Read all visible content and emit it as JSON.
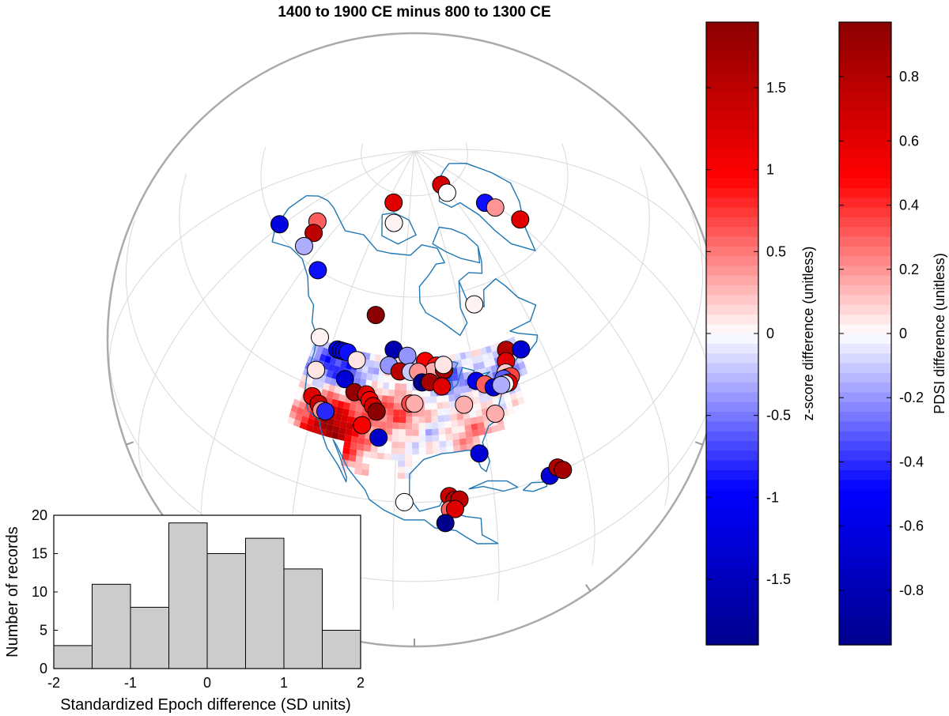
{
  "chart_data": [
    {
      "type": "map",
      "title": "1400 to 1900 CE minus 800 to 1300 CE",
      "projection": "orthographic, centered on North America",
      "background_field": "PDSI difference, gridded over contiguous US and northern Mexico",
      "markers": "circles colored by z-score difference at proxy record sites",
      "coastline_color": "#1f77b4",
      "grid": true,
      "sites": [
        {
          "lon": -161,
          "lat": 61,
          "z": -1.2
        },
        {
          "lon": -150,
          "lat": 67,
          "z": 0.6
        },
        {
          "lon": -147,
          "lat": 65,
          "z": 1.5
        },
        {
          "lon": -146,
          "lat": 62,
          "z": -0.3
        },
        {
          "lon": -135,
          "lat": 60,
          "z": -0.9
        },
        {
          "lon": -115,
          "lat": 78,
          "z": 1.2
        },
        {
          "lon": -110,
          "lat": 74,
          "z": 0.05
        },
        {
          "lon": -62,
          "lat": 81,
          "z": 1.3
        },
        {
          "lon": -62,
          "lat": 79,
          "z": 0.0
        },
        {
          "lon": -44,
          "lat": 73,
          "z": -0.9
        },
        {
          "lon": -42,
          "lat": 71,
          "z": 0.4
        },
        {
          "lon": -38,
          "lat": 66,
          "z": 1.2
        },
        {
          "lon": -109,
          "lat": 56,
          "z": 1.9
        },
        {
          "lon": -75,
          "lat": 57,
          "z": 0.05
        },
        {
          "lon": -124,
          "lat": 49,
          "z": 0.05
        },
        {
          "lon": -118,
          "lat": 48,
          "z": -1.1
        },
        {
          "lon": -117,
          "lat": 48,
          "z": -1.2
        },
        {
          "lon": -116,
          "lat": 48,
          "z": -1.0
        },
        {
          "lon": -115,
          "lat": 48,
          "z": -0.9
        },
        {
          "lon": -112,
          "lat": 47,
          "z": 0.1
        },
        {
          "lon": -102,
          "lat": 50,
          "z": -1.6
        },
        {
          "lon": -98,
          "lat": 49,
          "z": -0.4
        },
        {
          "lon": -93,
          "lat": 48,
          "z": 1.0
        },
        {
          "lon": -90,
          "lat": 47,
          "z": 0.9
        },
        {
          "lon": -91,
          "lat": 46,
          "z": 0.3
        },
        {
          "lon": -88,
          "lat": 46,
          "z": 1.7
        },
        {
          "lon": -88,
          "lat": 47,
          "z": 0.1
        },
        {
          "lon": -103,
          "lat": 47,
          "z": -0.4
        },
        {
          "lon": -100,
          "lat": 46,
          "z": 1.5
        },
        {
          "lon": -97,
          "lat": 46,
          "z": -0.2
        },
        {
          "lon": -95,
          "lat": 46,
          "z": 0.4
        },
        {
          "lon": -94,
          "lat": 44,
          "z": -1.9
        },
        {
          "lon": -92,
          "lat": 44,
          "z": 1.7
        },
        {
          "lon": -89,
          "lat": 43,
          "z": 1.2
        },
        {
          "lon": -80,
          "lat": 43,
          "z": -1.1
        },
        {
          "lon": -78,
          "lat": 42,
          "z": 0.6
        },
        {
          "lon": -76,
          "lat": 41,
          "z": -1.3
        },
        {
          "lon": -70,
          "lat": 47,
          "z": 1.6
        },
        {
          "lon": -66,
          "lat": 46,
          "z": -1.3
        },
        {
          "lon": -71,
          "lat": 45,
          "z": 1.2
        },
        {
          "lon": -72,
          "lat": 43,
          "z": 0.2
        },
        {
          "lon": -72,
          "lat": 42,
          "z": 1.3
        },
        {
          "lon": -71,
          "lat": 42,
          "z": 0.7
        },
        {
          "lon": -73,
          "lat": 42,
          "z": -0.6
        },
        {
          "lon": -72,
          "lat": 41,
          "z": 1.2
        },
        {
          "lon": -73,
          "lat": 41,
          "z": 0.0
        },
        {
          "lon": -74,
          "lat": 41,
          "z": -0.3
        },
        {
          "lon": -122,
          "lat": 43,
          "z": 0.1
        },
        {
          "lon": -114,
          "lat": 43,
          "z": -1.3
        },
        {
          "lon": -111,
          "lat": 41,
          "z": 1.8
        },
        {
          "lon": -108,
          "lat": 41,
          "z": 1.2
        },
        {
          "lon": -107,
          "lat": 40,
          "z": 1.0
        },
        {
          "lon": -106,
          "lat": 39,
          "z": 1.3
        },
        {
          "lon": -105,
          "lat": 38,
          "z": 1.9
        },
        {
          "lon": -97,
          "lat": 40,
          "z": 0.7
        },
        {
          "lon": -96,
          "lat": 40,
          "z": 0.3
        },
        {
          "lon": -84,
          "lat": 39,
          "z": 0.3
        },
        {
          "lon": -77,
          "lat": 36,
          "z": 0.3
        },
        {
          "lon": -121,
          "lat": 38,
          "z": 1.2
        },
        {
          "lon": -119,
          "lat": 37,
          "z": 1.4
        },
        {
          "lon": -118,
          "lat": 36,
          "z": 0.4
        },
        {
          "lon": -117,
          "lat": 36,
          "z": -0.8
        },
        {
          "lon": -108,
          "lat": 35,
          "z": 1.0
        },
        {
          "lon": -104,
          "lat": 33,
          "z": -1.4
        },
        {
          "lon": -82,
          "lat": 29,
          "z": -1.3
        },
        {
          "lon": -98,
          "lat": 20,
          "z": 0.0
        },
        {
          "lon": -89,
          "lat": 21,
          "z": 1.4
        },
        {
          "lon": -88,
          "lat": 20,
          "z": 1.6
        },
        {
          "lon": -87,
          "lat": 20,
          "z": 1.5
        },
        {
          "lon": -89,
          "lat": 18,
          "z": 0.6
        },
        {
          "lon": -88,
          "lat": 18,
          "z": 1.2
        },
        {
          "lon": -90,
          "lat": 15,
          "z": -1.9
        },
        {
          "lon": -68,
          "lat": 20,
          "z": -1.3
        },
        {
          "lon": -66,
          "lat": 21,
          "z": 1.6
        },
        {
          "lon": -65,
          "lat": 20,
          "z": 1.7
        }
      ]
    },
    {
      "type": "bar",
      "subtype": "histogram",
      "categories": [
        "-2 to -1.5",
        "-1.5 to -1",
        "-1 to -0.5",
        "-0.5 to 0",
        "0 to 0.5",
        "0.5 to 1",
        "1 to 1.5",
        "1.5 to 2"
      ],
      "bin_edges": [
        -2,
        -1.5,
        -1,
        -0.5,
        0,
        0.5,
        1,
        1.5,
        2
      ],
      "values": [
        3,
        11,
        8,
        19,
        15,
        17,
        13,
        5
      ],
      "xlabel": "Standardized Epoch difference (SD units)",
      "ylabel": "Number of records",
      "xlim": [
        -2,
        2
      ],
      "ylim": [
        0,
        20
      ],
      "xticks": [
        "-2",
        "-1",
        "0",
        "1",
        "2"
      ],
      "yticks": [
        "0",
        "5",
        "10",
        "15",
        "20"
      ],
      "bar_color": "#cccccc"
    },
    {
      "type": "colorbar",
      "label": "z-score difference (unitless)",
      "range": [
        -1.9,
        1.9
      ],
      "ticks": [
        -1.5,
        -1,
        -0.5,
        0,
        0.5,
        1,
        1.5
      ],
      "tick_labels": [
        "-1.5",
        "-1",
        "-0.5",
        "0",
        "0.5",
        "1",
        "1.5"
      ],
      "colormap": [
        "#00008b",
        "#0000ff",
        "#ffffff",
        "#ff0000",
        "#8b0000"
      ]
    },
    {
      "type": "colorbar",
      "label": "PDSI difference (unitless)",
      "range": [
        -0.97,
        0.97
      ],
      "ticks": [
        -0.8,
        -0.6,
        -0.4,
        -0.2,
        0,
        0.2,
        0.4,
        0.6,
        0.8
      ],
      "tick_labels": [
        "-0.8",
        "-0.6",
        "-0.4",
        "-0.2",
        "0",
        "0.2",
        "0.4",
        "0.6",
        "0.8"
      ],
      "colormap": [
        "#00008b",
        "#0000ff",
        "#ffffff",
        "#ff0000",
        "#8b0000"
      ]
    }
  ]
}
